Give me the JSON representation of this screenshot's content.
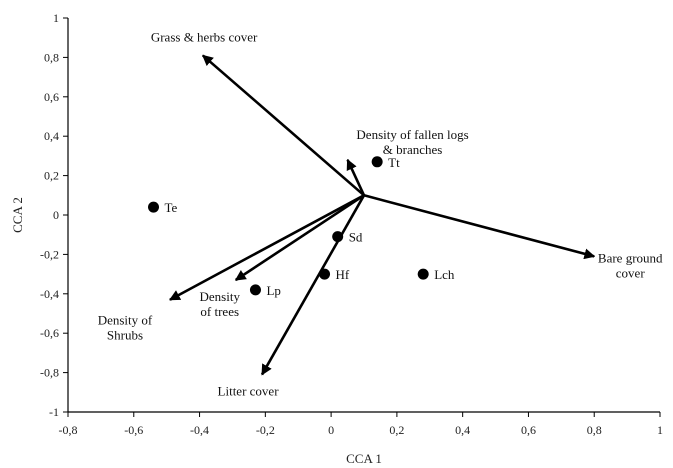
{
  "chart_data": {
    "type": "scatter",
    "title": "",
    "xlabel": "CCA 1",
    "ylabel": "CCA 2",
    "xlim": [
      -0.8,
      1
    ],
    "ylim": [
      -1,
      1
    ],
    "x_ticks": [
      "-0,8",
      "-0,6",
      "-0,4",
      "-0,2",
      "0",
      "0,2",
      "0,4",
      "0,6",
      "0,8",
      "1"
    ],
    "y_ticks": [
      "1",
      "0,8",
      "0,6",
      "0,4",
      "0,2",
      "0",
      "-0,2",
      "-0,4",
      "-0,6",
      "-0,8",
      "-1"
    ],
    "grid": false,
    "vector_origin": {
      "x": 0.1,
      "y": 0.1
    },
    "vectors": [
      {
        "label": "Grass & herbs cover",
        "x": -0.39,
        "y": 0.81
      },
      {
        "label": "Density of fallen logs\n& branches",
        "x": 0.05,
        "y": 0.28
      },
      {
        "label": "Bare ground\ncover",
        "x": 0.8,
        "y": -0.21
      },
      {
        "label": "Density of\nShrubs",
        "x": -0.49,
        "y": -0.43
      },
      {
        "label": "Density\nof trees",
        "x": -0.29,
        "y": -0.33
      },
      {
        "label": "Litter cover",
        "x": -0.21,
        "y": -0.81
      }
    ],
    "points": [
      {
        "label": "Te",
        "x": -0.54,
        "y": 0.04
      },
      {
        "label": "Tt",
        "x": 0.14,
        "y": 0.27
      },
      {
        "label": "Sd",
        "x": 0.02,
        "y": -0.11
      },
      {
        "label": "Hf",
        "x": -0.02,
        "y": -0.3
      },
      {
        "label": "Lch",
        "x": 0.28,
        "y": -0.3
      },
      {
        "label": "Lp",
        "x": -0.23,
        "y": -0.38
      }
    ]
  }
}
